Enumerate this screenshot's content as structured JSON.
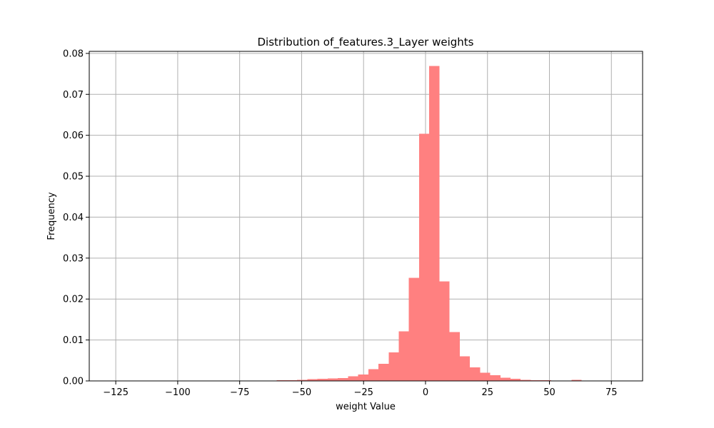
{
  "chart_data": {
    "type": "bar",
    "title": "Distribution of_features.3_Layer weights",
    "xlabel": "weight Value",
    "ylabel": "Frequency",
    "xlim": [
      -135.7,
      87.6
    ],
    "ylim": [
      0,
      0.0805
    ],
    "xticks": [
      -125,
      -100,
      -75,
      -50,
      -25,
      0,
      25,
      50,
      75
    ],
    "xtick_labels": [
      "−125",
      "−100",
      "−75",
      "−50",
      "−25",
      "0",
      "25",
      "50",
      "75"
    ],
    "yticks": [
      0.0,
      0.01,
      0.02,
      0.03,
      0.04,
      0.05,
      0.06,
      0.07,
      0.08
    ],
    "ytick_labels": [
      "0.00",
      "0.01",
      "0.02",
      "0.03",
      "0.04",
      "0.05",
      "0.06",
      "0.07",
      "0.08"
    ],
    "grid": true,
    "color": "#ff8080",
    "bin_width": 4.1,
    "bin_starts": [
      -125.6,
      -121.5,
      -117.4,
      -113.3,
      -109.2,
      -105.1,
      -101.0,
      -96.9,
      -92.8,
      -88.7,
      -84.6,
      -80.5,
      -76.4,
      -72.3,
      -68.2,
      -64.1,
      -60.0,
      -55.9,
      -51.8,
      -47.7,
      -43.6,
      -39.5,
      -35.4,
      -31.3,
      -27.2,
      -23.1,
      -19.0,
      -14.9,
      -10.8,
      -6.7,
      -2.6,
      1.5,
      5.6,
      9.7,
      13.8,
      17.9,
      22.0,
      26.1,
      30.2,
      34.3,
      38.4,
      42.5,
      46.6,
      50.7,
      54.8,
      58.9,
      63.0,
      67.1,
      71.2,
      75.3
    ],
    "values": [
      1e-05,
      0.0,
      0.0,
      0.0,
      0.0,
      1e-05,
      0.0,
      1e-05,
      1e-05,
      2e-05,
      2e-05,
      3e-05,
      4e-05,
      5e-05,
      6e-05,
      0.0001,
      0.00015,
      0.0002,
      0.0003,
      0.00042,
      0.00055,
      0.00065,
      0.0007,
      0.0011,
      0.0016,
      0.0029,
      0.0042,
      0.007,
      0.0121,
      0.0252,
      0.0604,
      0.0769,
      0.0243,
      0.0119,
      0.006,
      0.0033,
      0.002,
      0.0014,
      0.0008,
      0.0005,
      0.0003,
      0.0002,
      0.00015,
      0.0001,
      7e-05,
      0.00025,
      4e-05,
      2e-05,
      1e-05,
      1e-05
    ]
  }
}
